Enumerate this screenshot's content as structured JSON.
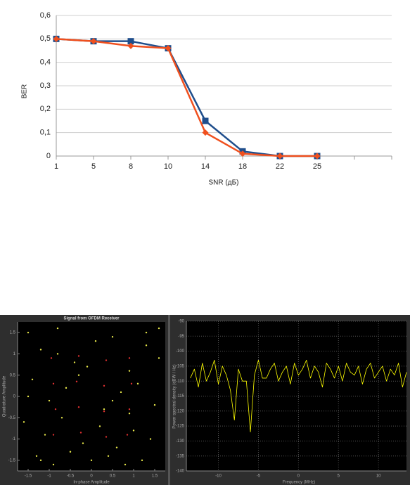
{
  "chart_data": [
    {
      "type": "line",
      "xlabel": "SNR (дБ)",
      "ylabel": "BER",
      "categories": [
        "1",
        "5",
        "8",
        "10",
        "14",
        "18",
        "22",
        "25",
        null,
        null
      ],
      "series": [
        {
          "color": "#1f4e8c",
          "marker": "square",
          "values": [
            0.5,
            0.49,
            0.49,
            0.46,
            0.15,
            0.02,
            0,
            0,
            null,
            null
          ]
        },
        {
          "color": "#f0501e",
          "marker": "diamond",
          "values": [
            0.5,
            0.49,
            0.47,
            0.46,
            0.1,
            0.01,
            0,
            0,
            null,
            null
          ]
        }
      ],
      "ylim": [
        0,
        0.6
      ],
      "yticks": [
        0,
        {
          "value": 0.1,
          "label": "0,1"
        },
        {
          "value": 0.2,
          "label": "0,2"
        },
        {
          "value": 0.3,
          "label": "0,3"
        },
        {
          "value": 0.4,
          "label": "0,4"
        },
        {
          "value": 0.5,
          "label": "0,5"
        },
        {
          "value": 0.6,
          "label": "0,6"
        }
      ],
      "grid": true
    },
    {
      "type": "scatter",
      "title": "Signal from OFDM Receiver",
      "xlabel": "In-phase Amplitude",
      "ylabel": "Quadrature Amplitude",
      "series": [
        {
          "color": "#e8e84a",
          "x": [
            -1.5,
            -1.2,
            -0.8,
            -0.4,
            0.1,
            0.5,
            0.9,
            1.3,
            1.6,
            -1.4,
            -1.0,
            -0.6,
            -0.1,
            0.3,
            0.7,
            1.1,
            1.5,
            -1.6,
            -1.1,
            -0.7,
            -0.2,
            0.2,
            0.6,
            1.0,
            1.4,
            -1.3,
            -0.9,
            -0.5,
            0.0,
            0.4,
            0.8,
            1.2,
            -1.5,
            -0.3,
            0.9,
            1.6,
            -0.8,
            0.5,
            -1.2,
            1.3
          ],
          "values": [
            1.5,
            1.1,
            1.6,
            0.8,
            1.3,
            1.4,
            0.6,
            1.2,
            0.9,
            0.4,
            -0.1,
            0.2,
            0.7,
            -0.3,
            0.1,
            0.3,
            -0.2,
            -0.6,
            -0.9,
            -0.5,
            -1.1,
            -0.7,
            -1.2,
            -0.8,
            -1.0,
            -1.4,
            -1.6,
            -1.3,
            -1.5,
            -1.4,
            -1.6,
            -1.5,
            0.0,
            0.5,
            -0.4,
            1.6,
            1.0,
            -0.1,
            -1.5,
            1.5
          ]
        },
        {
          "color": "#e03030",
          "x": [
            -0.95,
            -0.3,
            0.35,
            0.9,
            -0.9,
            -0.35,
            0.3,
            0.95,
            -0.85,
            -0.3,
            0.3,
            0.9,
            -0.9,
            -0.25,
            0.35,
            0.85
          ],
          "values": [
            0.9,
            0.95,
            0.85,
            0.9,
            0.3,
            0.35,
            0.25,
            0.3,
            -0.3,
            -0.25,
            -0.35,
            -0.3,
            -0.9,
            -0.85,
            -0.95,
            -0.9
          ]
        }
      ],
      "xlim": [
        -1.75,
        1.75
      ],
      "ylim": [
        -1.75,
        1.75
      ],
      "xticks": [
        -1.5,
        -1,
        -0.5,
        0,
        0.5,
        1,
        1.5
      ],
      "yticks": [
        -1.5,
        -1,
        -0.5,
        0,
        0.5,
        1,
        1.5
      ],
      "grid": false
    },
    {
      "type": "line",
      "xlabel": "Frequency (MHz)",
      "ylabel": "Power spectral density (dBW / Hz)",
      "x": [
        -13.5,
        -13,
        -12.5,
        -12,
        -11.5,
        -11,
        -10.5,
        -10,
        -9.5,
        -9,
        -8.5,
        -8,
        -7.5,
        -7,
        -6.5,
        -6,
        -5.5,
        -5,
        -4.5,
        -4,
        -3.5,
        -3,
        -2.5,
        -2,
        -1.5,
        -1,
        -0.5,
        0,
        0.5,
        1,
        1.5,
        2,
        2.5,
        3,
        3.5,
        4,
        4.5,
        5,
        5.5,
        6,
        6.5,
        7,
        7.5,
        8,
        8.5,
        9,
        9.5,
        10,
        10.5,
        11,
        11.5,
        12,
        12.5,
        13,
        13.5
      ],
      "series": [
        {
          "color": "#ffff00",
          "values": [
            -109,
            -106,
            -112,
            -104,
            -110,
            -107,
            -103,
            -111,
            -105,
            -108,
            -113,
            -123,
            -106,
            -110,
            -110,
            -127,
            -108,
            -103,
            -109,
            -109,
            -106,
            -104,
            -110,
            -107,
            -105,
            -111,
            -104,
            -108,
            -106,
            -103,
            -109,
            -105,
            -107,
            -112,
            -104,
            -106,
            -109,
            -105,
            -110,
            -104,
            -107,
            -108,
            -105,
            -111,
            -106,
            -104,
            -109,
            -107,
            -105,
            -110,
            -106,
            -108,
            -104,
            -112,
            -107
          ]
        }
      ],
      "xlim": [
        -14,
        13.5
      ],
      "ylim": [
        -140,
        -90
      ],
      "xticks": [
        -10,
        -5,
        0,
        5,
        10
      ],
      "yticks": [
        -140,
        -135,
        -130,
        -125,
        -120,
        -115,
        -110,
        -105,
        -100,
        -95,
        -90
      ],
      "grid": true
    }
  ]
}
